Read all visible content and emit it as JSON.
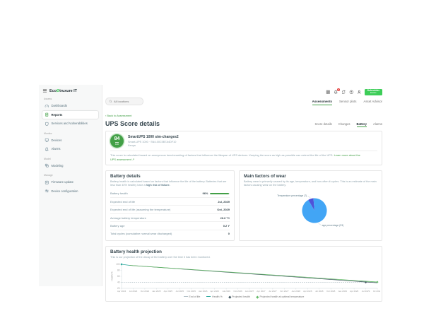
{
  "colors": {
    "accent_green": "#43a047",
    "brand_green": "#3dcd58",
    "badge_red": "#e53935",
    "pie_blue": "#42a5f5",
    "pie_indigo": "#4f52d8",
    "health_teal": "#26a69a",
    "projected_dark": "#455a64",
    "projected_optimal_green": "#66bb6a",
    "end_of_life_gray": "#b0bec5"
  },
  "app": {
    "logo_pre": "Eco",
    "logo_post": "truxure IT",
    "brand_line1": "Schneider",
    "brand_line2": "Electric",
    "topbar": {
      "icons": [
        {
          "name": "apps-grid",
          "icon": "grid"
        },
        {
          "name": "notifications",
          "icon": "bell",
          "badge": "9"
        },
        {
          "name": "sync",
          "icon": "sync"
        },
        {
          "name": "help",
          "icon": "help"
        },
        {
          "name": "user",
          "icon": "user"
        }
      ]
    }
  },
  "sidebar": {
    "sections": [
      {
        "label": "Assess",
        "items": [
          {
            "label": "Dashboards",
            "icon": "dashboards"
          },
          {
            "label": "Reports",
            "icon": "reports",
            "active": true
          },
          {
            "label": "Services and Vulnerabilities",
            "icon": "shield"
          }
        ]
      },
      {
        "label": "Monitor",
        "items": [
          {
            "label": "Devices",
            "icon": "devices"
          },
          {
            "label": "Alarms",
            "icon": "bell"
          }
        ]
      },
      {
        "label": "Model",
        "items": [
          {
            "label": "Modeling",
            "icon": "modeling"
          }
        ]
      },
      {
        "label": "Manage",
        "items": [
          {
            "label": "Firmware update",
            "icon": "firmware"
          },
          {
            "label": "Device configuration",
            "icon": "config"
          }
        ]
      }
    ]
  },
  "header": {
    "search_placeholder": "All locations",
    "tabs": [
      "Assessments",
      "Sensor plots",
      "Asset Advisor"
    ],
    "active_tab": "Assessments",
    "back_link": "‹ Back to Assessment",
    "page_title": "UPS Score details",
    "subtabs": [
      "Score details",
      "Changes",
      "Battery",
      "Alarms"
    ],
    "active_subtab": "Battery"
  },
  "score_card": {
    "score": "84",
    "score_max": "100",
    "device_name": "SmartUPS 1000 sim-changes2",
    "device_meta": "Smart-UPS 1000 · SN4-00C0B7A4DF10",
    "device_location": "Kenya",
    "description": "This score is calculated based on anonymous benchmarking of factors that influence the lifespan of UPS devices. Keeping the score as high as possible can extend the life of the UPS.",
    "learn_more": "Learn more about the UPS assessment ↗"
  },
  "battery_details": {
    "title": "Battery details",
    "description": "Battery health is calculated based on factors that influence the life of the battery. Batteries that are less than 40% healthy have a ",
    "description_bold": "high risk of failure.",
    "rows": [
      {
        "label": "Battery health",
        "value": "96%",
        "bar": 96
      },
      {
        "label": "Expected end of life",
        "value": "Jul, 2029"
      },
      {
        "label": "Expected end of life (assuming the temperature)",
        "value": "Oct, 2029"
      },
      {
        "label": "Average battery temperature",
        "value": "26.6 °C"
      },
      {
        "label": "Battery age",
        "value": "0.2 Y"
      },
      {
        "label": "Total cycles (cumulative normal wear discharged)",
        "value": "0"
      }
    ]
  },
  "wear_card": {
    "description": "Battery wear is primarily caused by its age, temperature, and how often it cycles. This is an estimate of the main factors causing wear on the battery."
  },
  "projection_card": {
    "description": "This is our projection of the decay of the battery over the time it has been monitored."
  },
  "chart_data": [
    {
      "type": "pie",
      "title": "Main factors of wear",
      "start_angle": -30,
      "slices": [
        {
          "label": "Temperature percentage (7)",
          "value": 7,
          "color": "#4f52d8"
        },
        {
          "label": "age percentage (93)",
          "value": 93,
          "color": "#42a5f5"
        }
      ]
    },
    {
      "type": "line",
      "title": "Battery health projection",
      "ylabel": "Health %",
      "ylim": [
        20,
        100
      ],
      "yticks": [
        20,
        40,
        60,
        80,
        100
      ],
      "xticks": [
        "Apr 2024",
        "Jul 2024",
        "Oct 2024",
        "Jan 2025",
        "Apr 2025",
        "Jul 2025",
        "Oct 2025",
        "Jan 2026",
        "Apr 2026",
        "Jul 2026",
        "Oct 2026",
        "Jan 2027",
        "Apr 2027",
        "Jul 2027",
        "Oct 2027",
        "Jan 2028",
        "Apr 2028",
        "Jul 2028",
        "Oct 2028",
        "Jan 2029",
        "Apr 2029",
        "Jul 2029",
        "Oct 2029"
      ],
      "series": [
        {
          "name": "End of life",
          "legend": "dashed",
          "color": "#b0bec5",
          "dashed": true,
          "points": [
            [
              0,
              40
            ],
            [
              22,
              40
            ]
          ]
        },
        {
          "name": "Health %",
          "legend": "line",
          "color": "#26a69a",
          "points": [
            [
              0,
              100
            ],
            [
              0.7,
              96.5
            ]
          ],
          "markers": [
            [
              0,
              100
            ]
          ]
        },
        {
          "name": "Projected health",
          "legend": "diamond",
          "color": "#455a64",
          "points": [
            [
              0.7,
              96.5
            ],
            [
              22,
              38.5
            ]
          ],
          "markers": [
            [
              21,
              40
            ]
          ]
        },
        {
          "name": "Projected health at optimal temperature",
          "legend": "diamond",
          "color": "#66bb6a",
          "points": [
            [
              0.7,
              96.5
            ],
            [
              22,
              41
            ]
          ],
          "markers": [
            [
              22,
              41
            ]
          ]
        }
      ]
    }
  ]
}
